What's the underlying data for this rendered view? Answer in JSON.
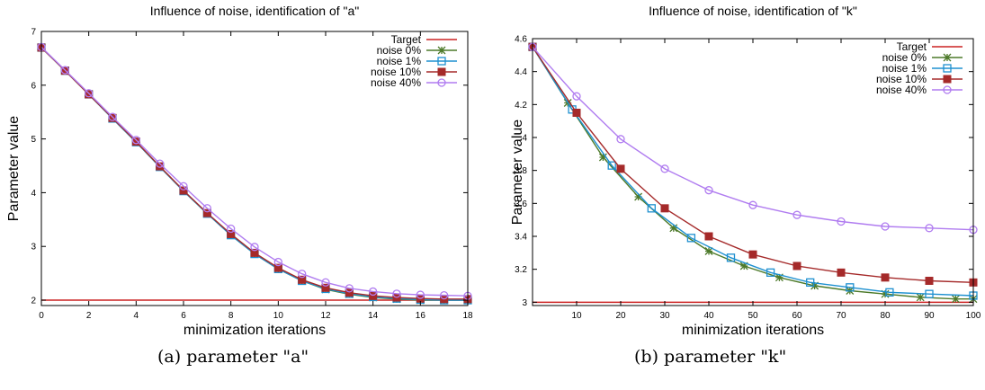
{
  "chart_data": [
    {
      "type": "line",
      "title": "Influence of noise, identification of \"a\"",
      "xlabel": "minimization iterations",
      "ylabel": "Parameter value",
      "xlim": [
        0,
        18
      ],
      "ylim": [
        1.9,
        7.0
      ],
      "xticks": [
        0,
        2,
        4,
        6,
        8,
        10,
        12,
        14,
        16,
        18
      ],
      "yticks": [
        2,
        3,
        4,
        5,
        6,
        7
      ],
      "grid": false,
      "legend_position": "top-right",
      "target": {
        "name": "Target",
        "color": "#cc2222",
        "value": 2.0
      },
      "series": [
        {
          "name": "noise 0%",
          "color": "#4d7a2a",
          "marker": "star",
          "x": [
            0,
            1,
            2,
            3,
            4,
            5,
            6,
            7,
            8,
            9,
            10,
            11,
            12,
            13,
            14,
            15,
            16,
            17,
            18
          ],
          "y": [
            6.7,
            6.27,
            5.83,
            5.38,
            4.94,
            4.48,
            4.03,
            3.61,
            3.21,
            2.86,
            2.58,
            2.36,
            2.2,
            2.11,
            2.05,
            2.02,
            2.0,
            2.0,
            2.0
          ]
        },
        {
          "name": "noise 1%",
          "color": "#1e90d0",
          "marker": "square-open",
          "x": [
            0,
            1,
            2,
            3,
            4,
            5,
            6,
            7,
            8,
            9,
            10,
            11,
            12,
            13,
            14,
            15,
            16,
            17,
            18
          ],
          "y": [
            6.7,
            6.27,
            5.83,
            5.38,
            4.94,
            4.48,
            4.03,
            3.61,
            3.21,
            2.86,
            2.58,
            2.36,
            2.21,
            2.12,
            2.06,
            2.03,
            2.01,
            2.0,
            2.0
          ]
        },
        {
          "name": "noise 10%",
          "color": "#a52a2a",
          "marker": "square-filled",
          "x": [
            0,
            1,
            2,
            3,
            4,
            5,
            6,
            7,
            8,
            9,
            10,
            11,
            12,
            13,
            14,
            15,
            16,
            17,
            18
          ],
          "y": [
            6.7,
            6.27,
            5.83,
            5.39,
            4.95,
            4.49,
            4.04,
            3.62,
            3.23,
            2.88,
            2.6,
            2.38,
            2.23,
            2.14,
            2.08,
            2.05,
            2.03,
            2.02,
            2.02
          ]
        },
        {
          "name": "noise 40%",
          "color": "#b07cf0",
          "marker": "circle-open",
          "x": [
            0,
            1,
            2,
            3,
            4,
            5,
            6,
            7,
            8,
            9,
            10,
            11,
            12,
            13,
            14,
            15,
            16,
            17,
            18
          ],
          "y": [
            6.71,
            6.28,
            5.85,
            5.41,
            4.98,
            4.54,
            4.12,
            3.71,
            3.33,
            2.99,
            2.71,
            2.49,
            2.33,
            2.22,
            2.16,
            2.12,
            2.1,
            2.09,
            2.08
          ]
        }
      ]
    },
    {
      "type": "line",
      "title": "Influence of noise, identification of \"k\"",
      "xlabel": "minimization iterations",
      "ylabel": "Parameter value",
      "xlim": [
        0,
        100
      ],
      "ylim": [
        2.98,
        4.6
      ],
      "xticks": [
        10,
        20,
        30,
        40,
        50,
        60,
        70,
        80,
        90,
        100
      ],
      "yticks": [
        3,
        3.2,
        3.4,
        3.6,
        3.8,
        4,
        4.2,
        4.4,
        4.6
      ],
      "grid": false,
      "legend_position": "top-right",
      "target": {
        "name": "Target",
        "color": "#cc2222",
        "value": 3.0
      },
      "series": [
        {
          "name": "noise 0%",
          "color": "#4d7a2a",
          "marker": "star",
          "x": [
            0,
            8,
            16,
            24,
            32,
            40,
            48,
            56,
            64,
            72,
            80,
            88,
            96,
            100
          ],
          "y": [
            4.55,
            4.21,
            3.88,
            3.64,
            3.45,
            3.31,
            3.22,
            3.15,
            3.1,
            3.07,
            3.05,
            3.03,
            3.02,
            3.02
          ]
        },
        {
          "name": "noise 1%",
          "color": "#1e90d0",
          "marker": "square-open",
          "x": [
            0,
            9,
            18,
            27,
            36,
            45,
            54,
            63,
            72,
            81,
            90,
            100
          ],
          "y": [
            4.55,
            4.17,
            3.83,
            3.57,
            3.39,
            3.27,
            3.18,
            3.12,
            3.09,
            3.06,
            3.05,
            3.04
          ]
        },
        {
          "name": "noise 10%",
          "color": "#a52a2a",
          "marker": "square-filled",
          "x": [
            0,
            10,
            20,
            30,
            40,
            50,
            60,
            70,
            80,
            90,
            100
          ],
          "y": [
            4.55,
            4.15,
            3.81,
            3.57,
            3.4,
            3.29,
            3.22,
            3.18,
            3.15,
            3.13,
            3.12
          ]
        },
        {
          "name": "noise 40%",
          "color": "#b07cf0",
          "marker": "circle-open",
          "x": [
            0,
            10,
            20,
            30,
            40,
            50,
            60,
            70,
            80,
            90,
            100
          ],
          "y": [
            4.55,
            4.25,
            3.99,
            3.81,
            3.68,
            3.59,
            3.53,
            3.49,
            3.46,
            3.45,
            3.44
          ]
        }
      ]
    }
  ],
  "captions": {
    "a": "(a)  parameter \"a\"",
    "b": "(b)  parameter \"k\""
  }
}
